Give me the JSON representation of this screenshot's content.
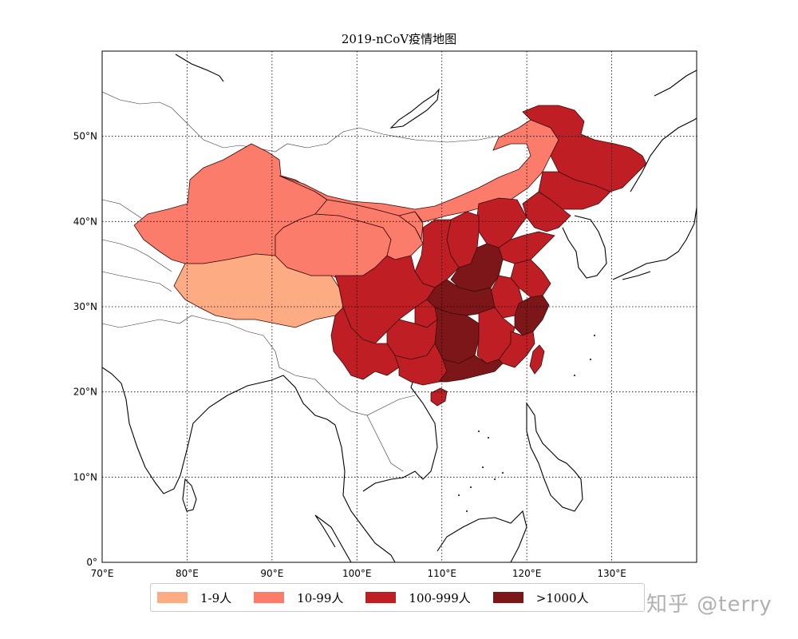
{
  "title": "2019-nCoV疫情地图",
  "axes": {
    "lon_range": [
      70,
      140
    ],
    "lat_range": [
      0,
      60
    ],
    "x_ticks": [
      "70°E",
      "80°E",
      "90°E",
      "100°E",
      "110°E",
      "120°E",
      "130°E"
    ],
    "y_ticks": [
      "0°",
      "10°N",
      "20°N",
      "30°N",
      "40°N",
      "50°N"
    ],
    "grid": "dotted"
  },
  "legend": {
    "placement": "bottom-center",
    "entries": [
      {
        "label": "1-9人",
        "color": "#fcab83"
      },
      {
        "label": "10-99人",
        "color": "#fb7c6a"
      },
      {
        "label": "100-999人",
        "color": "#bf1f24"
      },
      {
        "label": ">1000人",
        "color": "#7d1618"
      }
    ]
  },
  "colors": {
    "ocean": "#ffffff",
    "coastline": "#000000",
    "borders": "#333333"
  },
  "watermark": "知乎 @terry"
}
